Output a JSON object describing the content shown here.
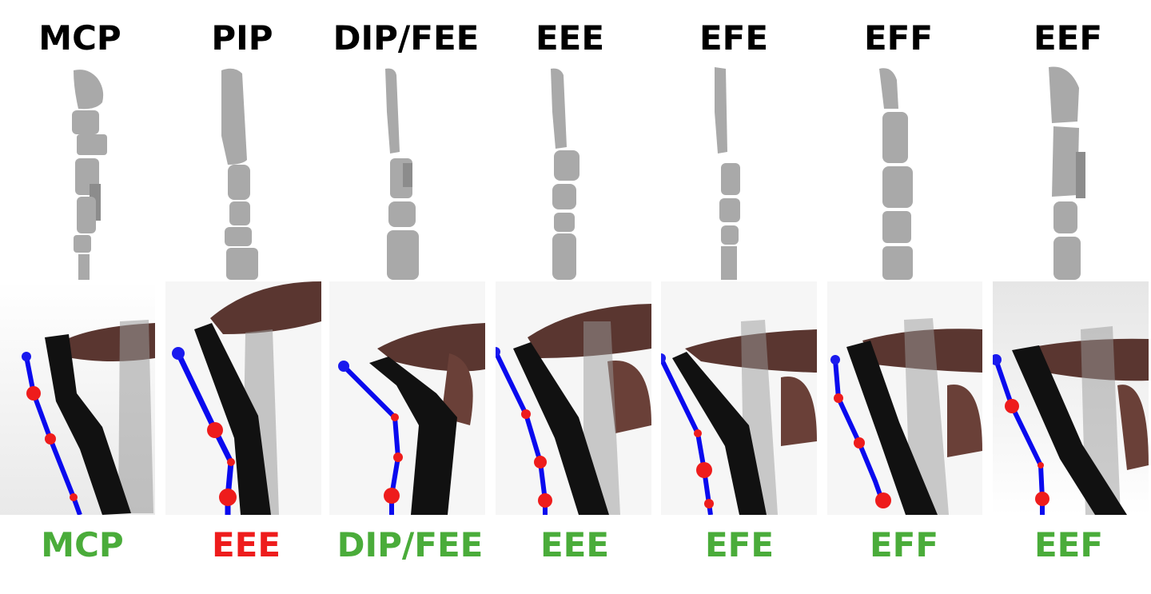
{
  "colors": {
    "correct": "#4aac3a",
    "incorrect": "#ee1c1c",
    "tracking_line": "#0a0aee",
    "tracking_joint": "#ee1c1c",
    "tracking_tip": "#1a1aee"
  },
  "panels": [
    {
      "top_label": "MCP",
      "bottom_label": "MCP",
      "status": "correct"
    },
    {
      "top_label": "PIP",
      "bottom_label": "EEE",
      "status": "incorrect"
    },
    {
      "top_label": "DIP/FEE",
      "bottom_label": "DIP/FEE",
      "status": "correct"
    },
    {
      "top_label": "EEE",
      "bottom_label": "EEE",
      "status": "correct"
    },
    {
      "top_label": "EFE",
      "bottom_label": "EFE",
      "status": "correct"
    },
    {
      "top_label": "EFF",
      "bottom_label": "EFF",
      "status": "correct"
    },
    {
      "top_label": "EEF",
      "bottom_label": "EEF",
      "status": "correct"
    }
  ]
}
